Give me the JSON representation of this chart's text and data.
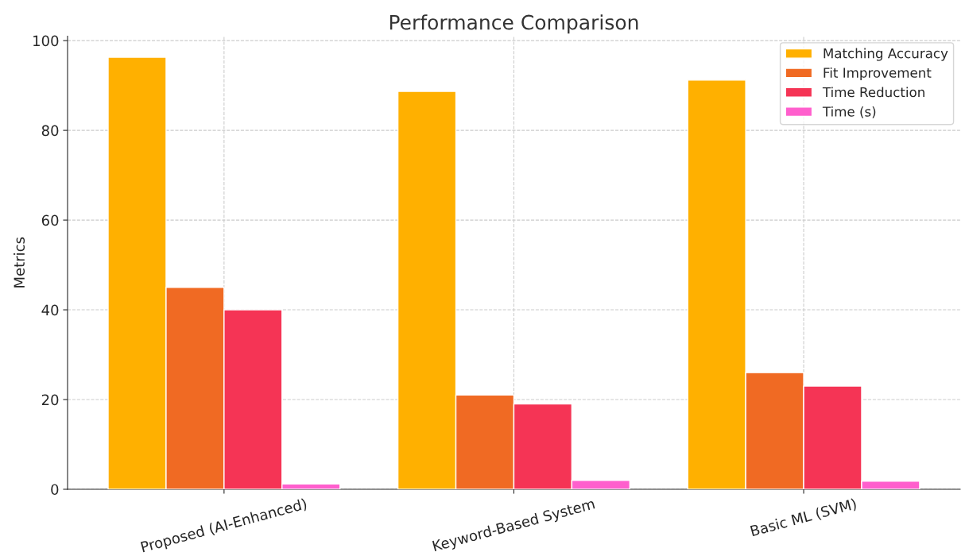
{
  "chart_data": {
    "type": "bar",
    "title": "Performance Comparison",
    "ylabel": "Metrics",
    "categories": [
      "Proposed (AI-Enhanced)",
      "Keyword-Based System",
      "Basic ML (SVM)"
    ],
    "series": [
      {
        "name": "Matching Accuracy",
        "color": "#ffb000",
        "values": [
          96.3,
          88.7,
          91.2
        ]
      },
      {
        "name": "Fit Improvement",
        "color": "#f06a23",
        "values": [
          45,
          21,
          26
        ]
      },
      {
        "name": "Time Reduction",
        "color": "#f53455",
        "values": [
          40,
          19,
          23
        ]
      },
      {
        "name": "Time (s)",
        "color": "#ff5fcd",
        "values": [
          1.2,
          2.0,
          1.8
        ]
      }
    ],
    "ylim": [
      0,
      101
    ],
    "yticks": [
      0,
      20,
      40,
      60,
      80,
      100
    ],
    "grid": true,
    "legend": "top right"
  }
}
